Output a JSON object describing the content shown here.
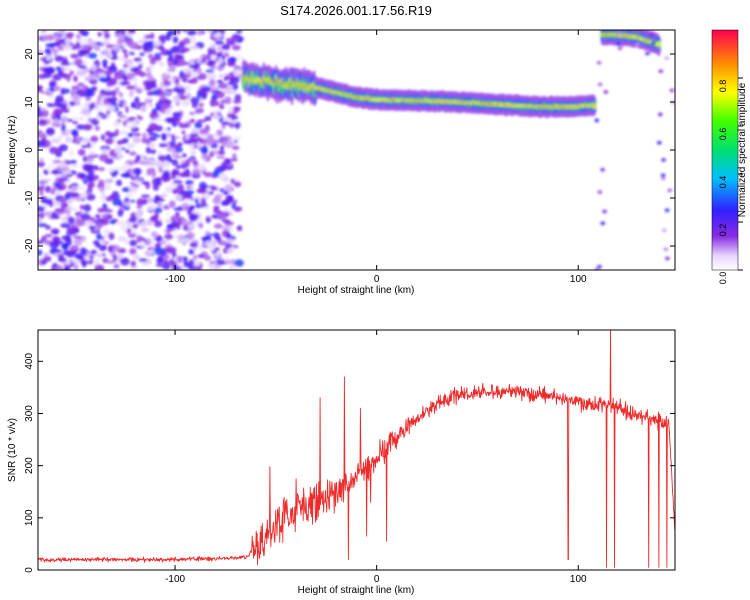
{
  "figure": {
    "title": "S174.2026.001.17.56.R19"
  },
  "chart_data": [
    {
      "type": "heatmap",
      "xlabel": "Height of straight line (km)",
      "ylabel": "Frequency (Hz)",
      "xlim": [
        -168,
        148
      ],
      "ylim": [
        -25,
        25
      ],
      "x_ticks": [
        -100,
        0,
        100
      ],
      "y_ticks": [
        -20,
        -10,
        0,
        10,
        20
      ],
      "grid": false,
      "colorscale": "rainbow (white → violet → blue → cyan → green → yellow → red)",
      "colorbar": {
        "label": "Normalized spectral amplitude",
        "range": [
          0,
          1
        ],
        "ticks": [
          "0.0",
          "0.2",
          "0.4",
          "0.6",
          "0.8"
        ],
        "tick_values": [
          0,
          0.2,
          0.4,
          0.6,
          0.8
        ]
      },
      "features": [
        {
          "name": "noise",
          "x_range": [
            -168,
            -68
          ],
          "y_range": [
            -25,
            25
          ],
          "amplitude": 0.1
        },
        {
          "name": "signal",
          "points": [
            [
              -66,
              15
            ],
            [
              -60,
              14.5
            ],
            [
              -50,
              14
            ],
            [
              -40,
              13.5
            ],
            [
              -30,
              13
            ],
            [
              -20,
              12
            ],
            [
              -10,
              11
            ],
            [
              0,
              10.5
            ],
            [
              20,
              10.3
            ],
            [
              40,
              10
            ],
            [
              60,
              9.5
            ],
            [
              80,
              9
            ],
            [
              96,
              9
            ],
            [
              108,
              9.3
            ]
          ],
          "amplitude": 0.9
        },
        {
          "name": "edge-feature",
          "points": [
            [
              112,
              24
            ],
            [
              120,
              24
            ],
            [
              130,
              23.5
            ],
            [
              140,
              22
            ]
          ],
          "amplitude": 0.9
        }
      ]
    },
    {
      "type": "line",
      "xlabel": "Height of straight line (km)",
      "ylabel": "SNR (10 * v/v)",
      "xlim": [
        -168,
        148
      ],
      "ylim": [
        0,
        460
      ],
      "x_ticks": [
        -100,
        0,
        100
      ],
      "y_ticks": [
        0,
        100,
        200,
        300,
        400
      ],
      "grid": false,
      "series": [
        {
          "color": "#ee2a2a",
          "envelope": {
            "x": [
              -168,
              -140,
              -100,
              -80,
              -65,
              -60,
              -55,
              -50,
              -45,
              -40,
              -35,
              -30,
              -25,
              -20,
              -15,
              -10,
              -5,
              0,
              5,
              10,
              20,
              30,
              40,
              50,
              60,
              70,
              80,
              90,
              100,
              105,
              110,
              115,
              120,
              125,
              130,
              135,
              140,
              145,
              148
            ],
            "y": [
              20,
              20,
              20,
              22,
              25,
              40,
              60,
              80,
              100,
              110,
              120,
              125,
              140,
              150,
              165,
              180,
              200,
              215,
              235,
              255,
              290,
              320,
              335,
              340,
              342,
              340,
              335,
              330,
              325,
              315,
              320,
              315,
              310,
              300,
              295,
              290,
              285,
              280,
              70
            ]
          },
          "spikes": [
            [
              -53,
              198
            ],
            [
              -40,
              175
            ],
            [
              -28,
              330
            ],
            [
              -16,
              370
            ],
            [
              -14,
              20
            ],
            [
              -8,
              310
            ],
            [
              -5,
              65
            ],
            [
              -3,
              130
            ],
            [
              5,
              55
            ],
            [
              95,
              20
            ],
            [
              114,
              5
            ],
            [
              116,
              465
            ],
            [
              118,
              5
            ],
            [
              135,
              5
            ],
            [
              140,
              5
            ],
            [
              144,
              5
            ]
          ]
        }
      ]
    }
  ]
}
